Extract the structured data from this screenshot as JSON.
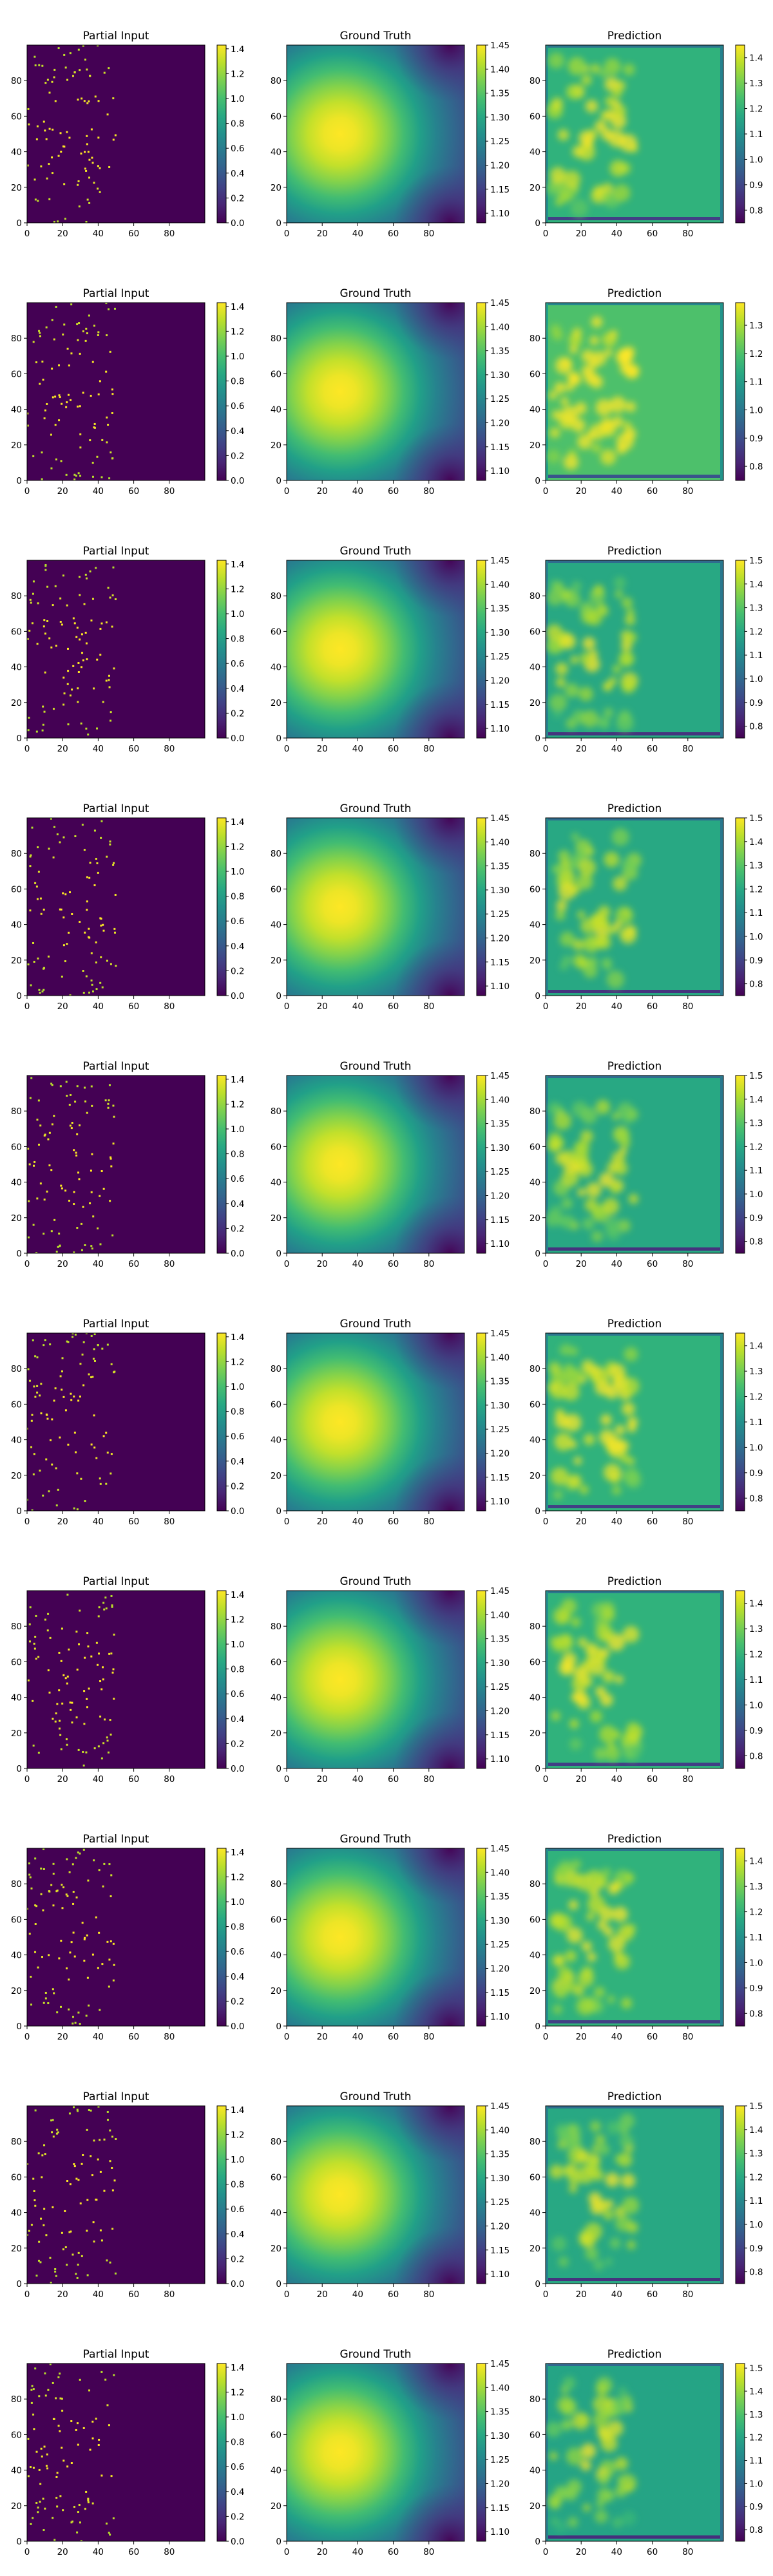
{
  "rows": 10,
  "panel_titles": [
    "Partial Input",
    "Ground Truth",
    "Prediction"
  ],
  "colormap": "viridis",
  "chart_data": [
    {
      "type": "heatmap",
      "name": "Partial Input",
      "xlim": [
        0,
        100
      ],
      "ylim": [
        0,
        100
      ],
      "xticks": [
        0,
        20,
        40,
        60,
        80
      ],
      "yticks": [
        0,
        20,
        40,
        60,
        80
      ],
      "color_range": [
        0,
        1.43
      ],
      "colorbar_ticks": [
        0.0,
        0.2,
        0.4,
        0.6,
        0.8,
        1.0,
        1.2,
        1.4
      ],
      "description_of_values": "sparse observed points of the ground-truth field in x<50; zero elsewhere"
    },
    {
      "type": "heatmap",
      "name": "Ground Truth",
      "xlim": [
        0,
        100
      ],
      "ylim": [
        0,
        100
      ],
      "xticks": [
        0,
        20,
        40,
        60,
        80
      ],
      "yticks": [
        0,
        20,
        40,
        60,
        80
      ],
      "color_range": [
        1.08,
        1.45
      ],
      "colorbar_ticks": [
        1.1,
        1.15,
        1.2,
        1.25,
        1.3,
        1.35,
        1.4,
        1.45
      ],
      "peak": {
        "x": 30,
        "y": 50,
        "value": 1.45
      },
      "minima": [
        {
          "x": 90,
          "y": 100,
          "value": 1.08
        },
        {
          "x": 90,
          "y": 0,
          "value": 1.08
        }
      ]
    },
    {
      "type": "heatmap",
      "name": "Prediction",
      "xlim": [
        0,
        100
      ],
      "ylim": [
        0,
        100
      ],
      "xticks": [
        0,
        20,
        40,
        60,
        80
      ],
      "yticks": [
        0,
        20,
        40,
        60,
        80
      ],
      "background_value": 1.2,
      "rows": [
        {
          "color_range": [
            0.75,
            1.45
          ],
          "colorbar_ticks": [
            0.8,
            0.9,
            1.0,
            1.1,
            1.2,
            1.3,
            1.4
          ]
        },
        {
          "color_range": [
            0.75,
            1.38
          ],
          "colorbar_ticks": [
            0.8,
            0.9,
            1.0,
            1.1,
            1.2,
            1.3
          ]
        },
        {
          "color_range": [
            0.75,
            1.5
          ],
          "colorbar_ticks": [
            0.8,
            0.9,
            1.0,
            1.1,
            1.2,
            1.3,
            1.4,
            1.5
          ]
        },
        {
          "color_range": [
            0.75,
            1.5
          ],
          "colorbar_ticks": [
            0.8,
            0.9,
            1.0,
            1.1,
            1.2,
            1.3,
            1.4,
            1.5
          ]
        },
        {
          "color_range": [
            0.75,
            1.5
          ],
          "colorbar_ticks": [
            0.8,
            0.9,
            1.0,
            1.1,
            1.2,
            1.3,
            1.4,
            1.5
          ]
        },
        {
          "color_range": [
            0.75,
            1.45
          ],
          "colorbar_ticks": [
            0.8,
            0.9,
            1.0,
            1.1,
            1.2,
            1.3,
            1.4
          ]
        },
        {
          "color_range": [
            0.75,
            1.45
          ],
          "colorbar_ticks": [
            0.8,
            0.9,
            1.0,
            1.1,
            1.2,
            1.3,
            1.4
          ]
        },
        {
          "color_range": [
            0.75,
            1.45
          ],
          "colorbar_ticks": [
            0.8,
            0.9,
            1.0,
            1.1,
            1.2,
            1.3,
            1.4
          ]
        },
        {
          "color_range": [
            0.75,
            1.5
          ],
          "colorbar_ticks": [
            0.8,
            0.9,
            1.0,
            1.1,
            1.2,
            1.3,
            1.4,
            1.5
          ]
        },
        {
          "color_range": [
            0.75,
            1.52
          ],
          "colorbar_ticks": [
            0.8,
            0.9,
            1.0,
            1.1,
            1.2,
            1.3,
            1.4,
            1.5
          ]
        }
      ]
    }
  ]
}
